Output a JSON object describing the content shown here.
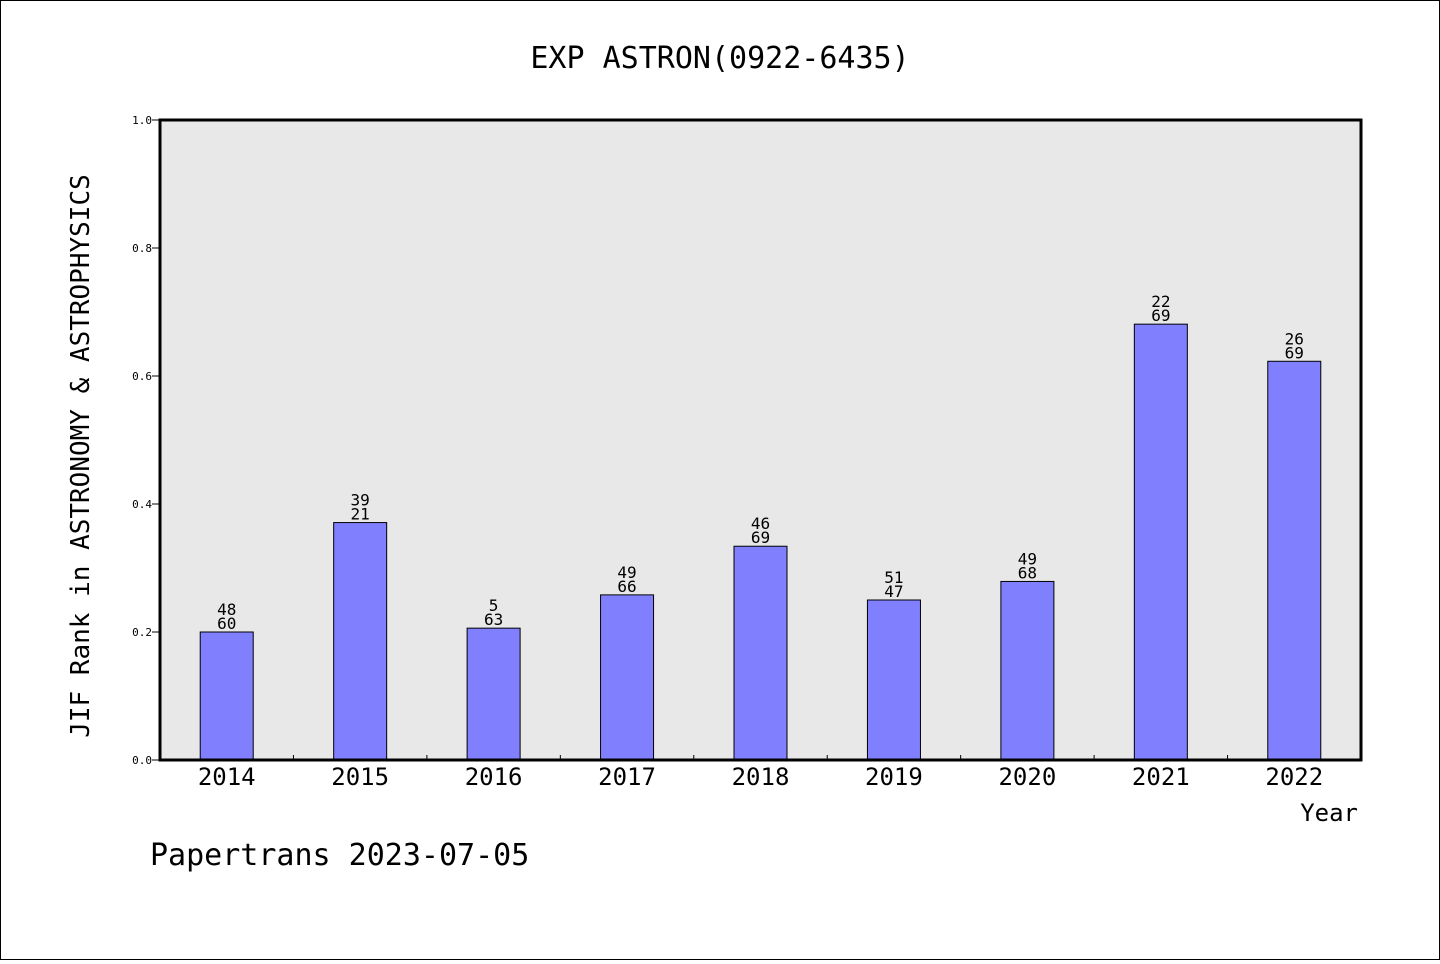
{
  "chart_data": {
    "type": "bar",
    "title": "EXP ASTRON(0922-6435)",
    "xlabel": "Year",
    "ylabel": "JIF Rank in ASTRONOMY & ASTROPHYSICS",
    "ylim": [
      0,
      1.0
    ],
    "yticks": [
      "0.0",
      "0.2",
      "0.4",
      "0.6",
      "0.8",
      "1.0"
    ],
    "categories": [
      "2014",
      "2015",
      "2016",
      "2017",
      "2018",
      "2019",
      "2020",
      "2021",
      "2022"
    ],
    "values": [
      0.2,
      0.371,
      0.206,
      0.258,
      0.334,
      0.25,
      0.279,
      0.681,
      0.623
    ],
    "label_top": [
      "48",
      "39",
      "5",
      "49",
      "46",
      "51",
      "49",
      "22",
      "26"
    ],
    "label_bottom": [
      "60",
      "21",
      "63",
      "66",
      "69",
      "47",
      "68",
      "69",
      "69"
    ],
    "grid": false,
    "colors": {
      "bar": "#8080ff",
      "plot_bg": "#e8e8e8"
    }
  },
  "footer": {
    "text": "Papertrans 2023-07-05"
  }
}
